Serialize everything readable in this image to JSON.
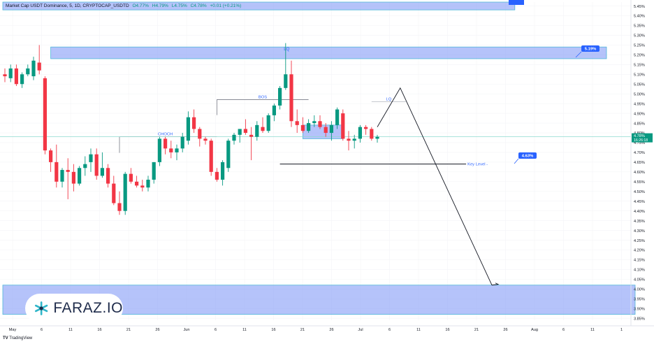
{
  "header": {
    "symbol": "Market Cap USDT Dominance, 5, 1D, CRYPTOCAP_USDTD",
    "open": "O4.77%",
    "high": "H4.79%",
    "low": "L4.75%",
    "close": "C4.78%",
    "change": "+0.01 (+0.21%)"
  },
  "watermark": {
    "text": "FARAZ.IO"
  },
  "footer": {
    "brand": "TradingView"
  },
  "colors": {
    "up": "#089981",
    "down": "#f23645",
    "zone": "#7b93f5",
    "accent": "#2962ff"
  },
  "chart_data": {
    "type": "candlestick",
    "x_ticks": [
      "May",
      "6",
      "11",
      "16",
      "21",
      "26",
      "Jun",
      "6",
      "11",
      "16",
      "21",
      "26",
      "Jul",
      "6",
      "11",
      "16",
      "21",
      "26",
      "Aug",
      "6",
      "11",
      "1"
    ],
    "y_ticks": [
      "5.45%",
      "5.40%",
      "5.35%",
      "5.30%",
      "5.25%",
      "5.20%",
      "5.15%",
      "5.10%",
      "5.05%",
      "5.00%",
      "4.95%",
      "4.90%",
      "4.85%",
      "4.80%",
      "4.75%",
      "4.70%",
      "4.65%",
      "4.60%",
      "4.55%",
      "4.50%",
      "4.45%",
      "4.40%",
      "4.35%",
      "4.30%",
      "4.25%",
      "4.20%",
      "4.15%",
      "4.10%",
      "4.05%",
      "4.00%",
      "3.95%",
      "3.90%",
      "3.85%"
    ],
    "ylim": [
      3.84,
      5.47
    ],
    "candles": [
      {
        "o": 5.1,
        "h": 5.13,
        "l": 5.06,
        "c": 5.09
      },
      {
        "o": 5.08,
        "h": 5.15,
        "l": 5.06,
        "c": 5.13
      },
      {
        "o": 5.13,
        "h": 5.15,
        "l": 5.04,
        "c": 5.05
      },
      {
        "o": 5.05,
        "h": 5.11,
        "l": 5.03,
        "c": 5.1
      },
      {
        "o": 5.1,
        "h": 5.15,
        "l": 5.09,
        "c": 5.13
      },
      {
        "o": 5.09,
        "h": 5.19,
        "l": 5.07,
        "c": 5.17
      },
      {
        "o": 5.16,
        "h": 5.25,
        "l": 5.1,
        "c": 5.12
      },
      {
        "o": 5.08,
        "h": 5.09,
        "l": 4.69,
        "c": 4.71
      },
      {
        "o": 4.71,
        "h": 4.72,
        "l": 4.6,
        "c": 4.65
      },
      {
        "o": 4.65,
        "h": 4.74,
        "l": 4.52,
        "c": 4.55
      },
      {
        "o": 4.55,
        "h": 4.62,
        "l": 4.52,
        "c": 4.61
      },
      {
        "o": 4.61,
        "h": 4.67,
        "l": 4.46,
        "c": 4.6
      },
      {
        "o": 4.6,
        "h": 4.64,
        "l": 4.5,
        "c": 4.54
      },
      {
        "o": 4.54,
        "h": 4.63,
        "l": 4.53,
        "c": 4.62
      },
      {
        "o": 4.62,
        "h": 4.68,
        "l": 4.58,
        "c": 4.64
      },
      {
        "o": 4.65,
        "h": 4.72,
        "l": 4.6,
        "c": 4.69
      },
      {
        "o": 4.69,
        "h": 4.72,
        "l": 4.56,
        "c": 4.58
      },
      {
        "o": 4.58,
        "h": 4.7,
        "l": 4.57,
        "c": 4.62
      },
      {
        "o": 4.62,
        "h": 4.64,
        "l": 4.52,
        "c": 4.54
      },
      {
        "o": 4.54,
        "h": 4.58,
        "l": 4.43,
        "c": 4.44
      },
      {
        "o": 4.44,
        "h": 4.5,
        "l": 4.38,
        "c": 4.4
      },
      {
        "o": 4.4,
        "h": 4.6,
        "l": 4.38,
        "c": 4.59
      },
      {
        "o": 4.59,
        "h": 4.62,
        "l": 4.54,
        "c": 4.55
      },
      {
        "o": 4.55,
        "h": 4.58,
        "l": 4.52,
        "c": 4.53
      },
      {
        "o": 4.53,
        "h": 4.56,
        "l": 4.5,
        "c": 4.52
      },
      {
        "o": 4.52,
        "h": 4.58,
        "l": 4.5,
        "c": 4.56
      },
      {
        "o": 4.56,
        "h": 4.65,
        "l": 4.54,
        "c": 4.65
      },
      {
        "o": 4.65,
        "h": 4.78,
        "l": 4.63,
        "c": 4.77
      },
      {
        "o": 4.77,
        "h": 4.78,
        "l": 4.69,
        "c": 4.72
      },
      {
        "o": 4.72,
        "h": 4.76,
        "l": 4.67,
        "c": 4.7
      },
      {
        "o": 4.7,
        "h": 4.74,
        "l": 4.66,
        "c": 4.72
      },
      {
        "o": 4.72,
        "h": 4.8,
        "l": 4.7,
        "c": 4.78
      },
      {
        "o": 4.76,
        "h": 4.91,
        "l": 4.74,
        "c": 4.88
      },
      {
        "o": 4.88,
        "h": 4.92,
        "l": 4.8,
        "c": 4.82
      },
      {
        "o": 4.82,
        "h": 4.83,
        "l": 4.73,
        "c": 4.77
      },
      {
        "o": 4.77,
        "h": 4.78,
        "l": 4.74,
        "c": 4.76
      },
      {
        "o": 4.76,
        "h": 4.77,
        "l": 4.58,
        "c": 4.6
      },
      {
        "o": 4.6,
        "h": 4.62,
        "l": 4.55,
        "c": 4.56
      },
      {
        "o": 4.56,
        "h": 4.66,
        "l": 4.53,
        "c": 4.65
      },
      {
        "o": 4.62,
        "h": 4.77,
        "l": 4.6,
        "c": 4.76
      },
      {
        "o": 4.76,
        "h": 4.8,
        "l": 4.74,
        "c": 4.79
      },
      {
        "o": 4.79,
        "h": 4.81,
        "l": 4.75,
        "c": 4.82
      },
      {
        "o": 4.82,
        "h": 4.87,
        "l": 4.79,
        "c": 4.8
      },
      {
        "o": 4.79,
        "h": 4.83,
        "l": 4.66,
        "c": 4.78
      },
      {
        "o": 4.78,
        "h": 4.86,
        "l": 4.76,
        "c": 4.84
      },
      {
        "o": 4.83,
        "h": 4.88,
        "l": 4.8,
        "c": 4.81
      },
      {
        "o": 4.81,
        "h": 4.9,
        "l": 4.8,
        "c": 4.89
      },
      {
        "o": 4.89,
        "h": 4.95,
        "l": 4.86,
        "c": 4.94
      },
      {
        "o": 4.94,
        "h": 5.04,
        "l": 4.92,
        "c": 5.03
      },
      {
        "o": 5.03,
        "h": 5.26,
        "l": 5.02,
        "c": 5.1
      },
      {
        "o": 5.1,
        "h": 5.17,
        "l": 4.83,
        "c": 4.86
      },
      {
        "o": 4.86,
        "h": 4.92,
        "l": 4.8,
        "c": 4.84
      },
      {
        "o": 4.84,
        "h": 4.88,
        "l": 4.8,
        "c": 4.81
      },
      {
        "o": 4.81,
        "h": 4.87,
        "l": 4.8,
        "c": 4.85
      },
      {
        "o": 4.85,
        "h": 4.89,
        "l": 4.83,
        "c": 4.86
      },
      {
        "o": 4.86,
        "h": 4.89,
        "l": 4.82,
        "c": 4.83
      },
      {
        "o": 4.83,
        "h": 4.85,
        "l": 4.78,
        "c": 4.8
      },
      {
        "o": 4.8,
        "h": 4.86,
        "l": 4.76,
        "c": 4.84
      },
      {
        "o": 4.84,
        "h": 4.93,
        "l": 4.82,
        "c": 4.92
      },
      {
        "o": 4.9,
        "h": 4.92,
        "l": 4.76,
        "c": 4.77
      },
      {
        "o": 4.77,
        "h": 4.81,
        "l": 4.71,
        "c": 4.76
      },
      {
        "o": 4.76,
        "h": 4.79,
        "l": 4.72,
        "c": 4.77
      },
      {
        "o": 4.77,
        "h": 4.84,
        "l": 4.75,
        "c": 4.83
      },
      {
        "o": 4.83,
        "h": 4.84,
        "l": 4.79,
        "c": 4.82
      },
      {
        "o": 4.82,
        "h": 4.83,
        "l": 4.76,
        "c": 4.77
      },
      {
        "o": 4.77,
        "h": 4.79,
        "l": 4.75,
        "c": 4.78
      }
    ],
    "last_price": "4.78%",
    "countdown": "16:26:18",
    "zones": [
      {
        "label": "",
        "y_top": 5.47,
        "y_bottom": 5.43,
        "x_start": 0,
        "x_end": 89
      },
      {
        "label": "LQ",
        "y_top": 5.24,
        "y_bottom": 5.18,
        "x_start": 8,
        "x_end": 105
      },
      {
        "label": "",
        "y_top": 4.84,
        "y_bottom": 4.77,
        "x_start": 52,
        "x_end": 59
      },
      {
        "label": "",
        "y_top": 4.02,
        "y_bottom": 3.87,
        "x_start": 0,
        "x_end": 110
      }
    ],
    "levels": [
      {
        "label": "CHOCH",
        "y": 4.78
      },
      {
        "label": "BOS",
        "y": 4.97
      },
      {
        "label": "LQ",
        "y": 4.96
      },
      {
        "label": "Key Level",
        "y": 4.64
      }
    ],
    "price_tags": [
      "5.19%",
      "4.63%"
    ],
    "projection": [
      {
        "bar": 65,
        "y": 4.83
      },
      {
        "bar": 69,
        "y": 5.03
      },
      {
        "bar": 85,
        "y": 4.02
      }
    ]
  }
}
